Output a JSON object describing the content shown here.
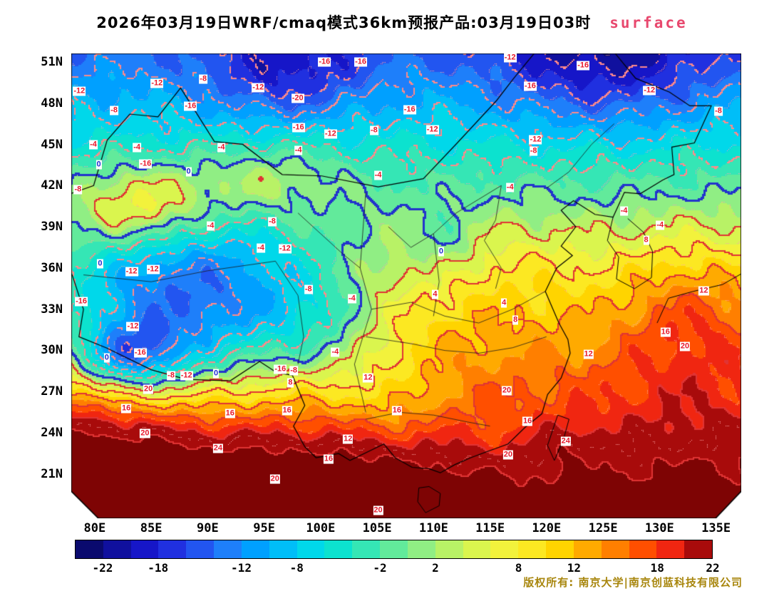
{
  "title": {
    "main": "2026年03月19日WRF/cmaq模式36km预报产品:03月19日03时",
    "highlight": "surface"
  },
  "footer": {
    "copyright": "版权所有: 南京大学|南京创蓝科技有限公司"
  },
  "axes": {
    "lat_ticks": [
      "51N",
      "48N",
      "45N",
      "42N",
      "39N",
      "36N",
      "33N",
      "30N",
      "27N",
      "24N",
      "21N"
    ],
    "lon_ticks": [
      "80E",
      "85E",
      "90E",
      "95E",
      "100E",
      "105E",
      "110E",
      "115E",
      "120E",
      "125E",
      "130E",
      "135E"
    ]
  },
  "colorbar": {
    "cell_colors": [
      "#0a0a6e",
      "#10109e",
      "#1616c8",
      "#2030e0",
      "#2255f0",
      "#1e7ffa",
      "#00a0ff",
      "#00bef8",
      "#00d8ea",
      "#0ce2cf",
      "#35e6b5",
      "#62ea9b",
      "#90ee84",
      "#b8f266",
      "#daf54e",
      "#f2f23c",
      "#fce822",
      "#ffd400",
      "#ffaa00",
      "#ff7f00",
      "#ff4f00",
      "#f02611",
      "#a80b0b"
    ],
    "tick_labels": [
      "-22",
      "-18",
      "-12",
      "-8",
      "-2",
      "2",
      "8",
      "12",
      "18",
      "22"
    ],
    "tick_values": [
      -22,
      -18,
      -12,
      -8,
      -2,
      2,
      8,
      12,
      18,
      22
    ],
    "value_min": -24,
    "value_max": 22
  },
  "colors": {
    "contour_positive": "#e03434",
    "contour_negative": "#ff8a8a",
    "contour_minor": "#ffa5a5",
    "contour_zero": "#2233cc",
    "label_red": "#e8192c",
    "label_blue": "#2030d0",
    "title_highlight": "#e8486e",
    "copyright_text": "#a8860d",
    "over_24_fill": "#7e0404",
    "border_line": "#000000"
  },
  "chart_data": {
    "type": "heatmap",
    "subtype": "filled-contour-temperature-map",
    "title": "2026年03月19日WRF/cmaq模式36km预报产品:03月19日03时 surface",
    "variable": "surface temperature (°C)",
    "model": "WRF/cmaq 36km",
    "forecast_date": "2026年03月19日",
    "valid_time": "03月19日03时",
    "x_axis": {
      "label": "longitude",
      "tick_labels": [
        "80E",
        "85E",
        "90E",
        "95E",
        "100E",
        "105E",
        "110E",
        "115E",
        "120E",
        "125E",
        "130E",
        "135E"
      ]
    },
    "y_axis": {
      "label": "latitude",
      "tick_labels": [
        "51N",
        "48N",
        "45N",
        "42N",
        "39N",
        "36N",
        "33N",
        "30N",
        "27N",
        "24N",
        "21N"
      ]
    },
    "contour_interval_labeled": 4,
    "contour_levels_labeled": [
      -20,
      -16,
      -12,
      -8,
      -4,
      0,
      4,
      8,
      12,
      16,
      20,
      24
    ],
    "colorbar_range": [
      -24,
      22
    ],
    "colorbar_step": 2,
    "colorbar_tick_values": [
      -22,
      -18,
      -12,
      -8,
      -2,
      2,
      8,
      12,
      18,
      22
    ],
    "legend_position": "bottom",
    "grid": false,
    "contour_labels": [
      {
        "v": "-16",
        "x": 37.8,
        "y": 1.8
      },
      {
        "v": "-16",
        "x": 43.2,
        "y": 1.8
      },
      {
        "v": "-12",
        "x": 65.5,
        "y": 0.9
      },
      {
        "v": "-16",
        "x": 76.4,
        "y": 2.6
      },
      {
        "v": "-12",
        "x": 86.3,
        "y": 8.0
      },
      {
        "v": "-12",
        "x": 1.2,
        "y": 8.2
      },
      {
        "v": "-12",
        "x": 12.8,
        "y": 6.4
      },
      {
        "v": "-8",
        "x": 19.7,
        "y": 5.5
      },
      {
        "v": "-12",
        "x": 27.9,
        "y": 7.4
      },
      {
        "v": "-20",
        "x": 33.8,
        "y": 9.6
      },
      {
        "v": "-16",
        "x": 68.5,
        "y": 7.0
      },
      {
        "v": "-8",
        "x": 6.4,
        "y": 12.3
      },
      {
        "v": "-16",
        "x": 17.8,
        "y": 11.4
      },
      {
        "v": "-16",
        "x": 33.9,
        "y": 15.9
      },
      {
        "v": "-12",
        "x": 38.7,
        "y": 17.3
      },
      {
        "v": "-8",
        "x": 45.2,
        "y": 16.6
      },
      {
        "v": "-16",
        "x": 50.5,
        "y": 12.1
      },
      {
        "v": "-12",
        "x": 53.9,
        "y": 16.4
      },
      {
        "v": "-12",
        "x": 69.3,
        "y": 18.6
      },
      {
        "v": "-8",
        "x": 69.0,
        "y": 21.0
      },
      {
        "v": "-8",
        "x": 96.6,
        "y": 12.4
      },
      {
        "v": "-4",
        "x": 3.3,
        "y": 19.6
      },
      {
        "v": "-4",
        "x": 9.8,
        "y": 20.2
      },
      {
        "v": "-16",
        "x": 11.1,
        "y": 23.8
      },
      {
        "v": "-4",
        "x": 22.4,
        "y": 20.3
      },
      {
        "v": "-4",
        "x": 33.9,
        "y": 20.8
      },
      {
        "v": "0",
        "x": 17.5,
        "y": 25.4,
        "c": "b"
      },
      {
        "v": "0",
        "x": 4.1,
        "y": 23.9,
        "c": "b"
      },
      {
        "v": "-4",
        "x": 45.8,
        "y": 26.3
      },
      {
        "v": "-4",
        "x": 65.5,
        "y": 28.8
      },
      {
        "v": "-8",
        "x": 1.0,
        "y": 29.3
      },
      {
        "v": "-4",
        "x": 82.5,
        "y": 33.9
      },
      {
        "v": "-8",
        "x": 30.0,
        "y": 36.2
      },
      {
        "v": "-4",
        "x": 20.8,
        "y": 37.1
      },
      {
        "v": "-4",
        "x": 87.9,
        "y": 37.0
      },
      {
        "v": "8",
        "x": 85.8,
        "y": 40.2
      },
      {
        "v": "0",
        "x": 4.3,
        "y": 45.3,
        "c": "b"
      },
      {
        "v": "-12",
        "x": 9.0,
        "y": 46.9
      },
      {
        "v": "-12",
        "x": 12.2,
        "y": 46.5
      },
      {
        "v": "-4",
        "x": 28.3,
        "y": 41.9
      },
      {
        "v": "-12",
        "x": 31.9,
        "y": 42.1
      },
      {
        "v": "0",
        "x": 55.2,
        "y": 42.6,
        "c": "b"
      },
      {
        "v": "-8",
        "x": 35.4,
        "y": 50.8
      },
      {
        "v": "-4",
        "x": 41.9,
        "y": 52.8
      },
      {
        "v": "-16",
        "x": 1.5,
        "y": 53.4
      },
      {
        "v": "-12",
        "x": 9.2,
        "y": 58.8
      },
      {
        "v": "4",
        "x": 54.3,
        "y": 51.9
      },
      {
        "v": "4",
        "x": 64.6,
        "y": 53.7
      },
      {
        "v": "8",
        "x": 66.3,
        "y": 57.4
      },
      {
        "v": "-16",
        "x": 10.3,
        "y": 64.4
      },
      {
        "v": "0",
        "x": 5.3,
        "y": 65.5,
        "c": "b"
      },
      {
        "v": "-4",
        "x": 39.4,
        "y": 64.2
      },
      {
        "v": "12",
        "x": 77.2,
        "y": 64.8
      },
      {
        "v": "-8",
        "x": 14.9,
        "y": 69.3
      },
      {
        "v": "-12",
        "x": 17.2,
        "y": 69.3
      },
      {
        "v": "0",
        "x": 21.6,
        "y": 68.8,
        "c": "b"
      },
      {
        "v": "-16",
        "x": 31.2,
        "y": 68.0
      },
      {
        "v": "-8",
        "x": 33.2,
        "y": 68.2
      },
      {
        "v": "20",
        "x": 11.5,
        "y": 72.2
      },
      {
        "v": "8",
        "x": 32.7,
        "y": 70.9
      },
      {
        "v": "12",
        "x": 44.3,
        "y": 69.8
      },
      {
        "v": "16",
        "x": 8.2,
        "y": 76.4
      },
      {
        "v": "16",
        "x": 23.7,
        "y": 77.4
      },
      {
        "v": "16",
        "x": 32.2,
        "y": 76.9
      },
      {
        "v": "16",
        "x": 48.6,
        "y": 76.9
      },
      {
        "v": "20",
        "x": 65.0,
        "y": 72.6
      },
      {
        "v": "16",
        "x": 68.1,
        "y": 79.1
      },
      {
        "v": "20",
        "x": 91.6,
        "y": 63.1
      },
      {
        "v": "16",
        "x": 88.7,
        "y": 59.9
      },
      {
        "v": "12",
        "x": 94.4,
        "y": 51.1
      },
      {
        "v": "20",
        "x": 11.0,
        "y": 81.8
      },
      {
        "v": "24",
        "x": 21.9,
        "y": 85.0
      },
      {
        "v": "12",
        "x": 41.3,
        "y": 83.0
      },
      {
        "v": "16",
        "x": 38.4,
        "y": 87.3
      },
      {
        "v": "20",
        "x": 65.2,
        "y": 86.4
      },
      {
        "v": "24",
        "x": 73.8,
        "y": 83.5
      },
      {
        "v": "20",
        "x": 30.4,
        "y": 91.5
      },
      {
        "v": "20",
        "x": 45.8,
        "y": 98.3
      }
    ]
  }
}
